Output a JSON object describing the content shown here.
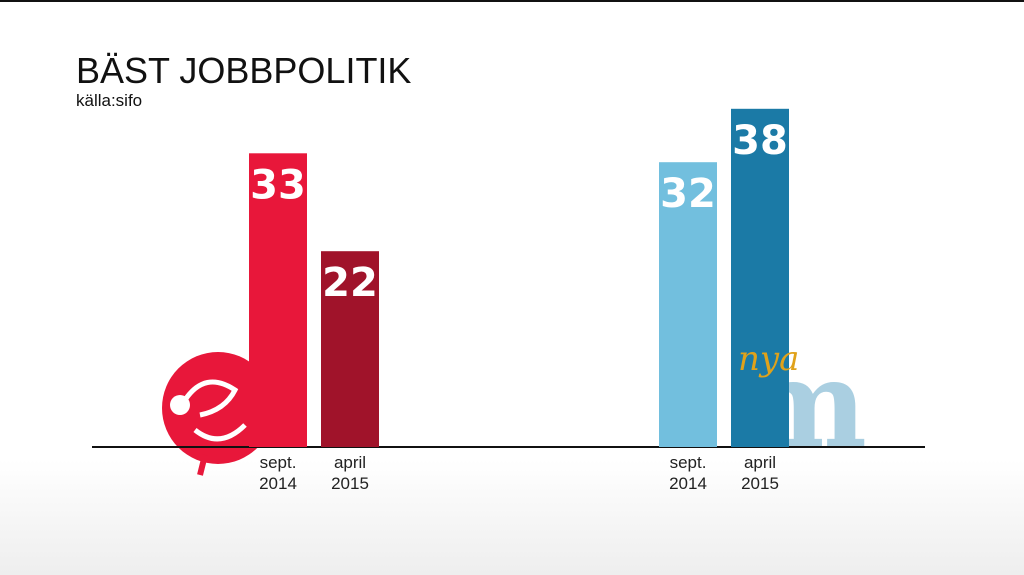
{
  "chart_data": {
    "type": "bar",
    "title": "BÄST JOBBPOLITIK",
    "subtitle": "källa:sifo",
    "categories": [
      "sept. 2014",
      "april 2015",
      "sept. 2014",
      "april 2015"
    ],
    "values": [
      33,
      22,
      32,
      38
    ],
    "colors": [
      "#e8173a",
      "#a0132a",
      "#72bfde",
      "#1b7aa6"
    ],
    "ylim": [
      0,
      40
    ],
    "annotations": [
      "nya",
      "m"
    ]
  }
}
